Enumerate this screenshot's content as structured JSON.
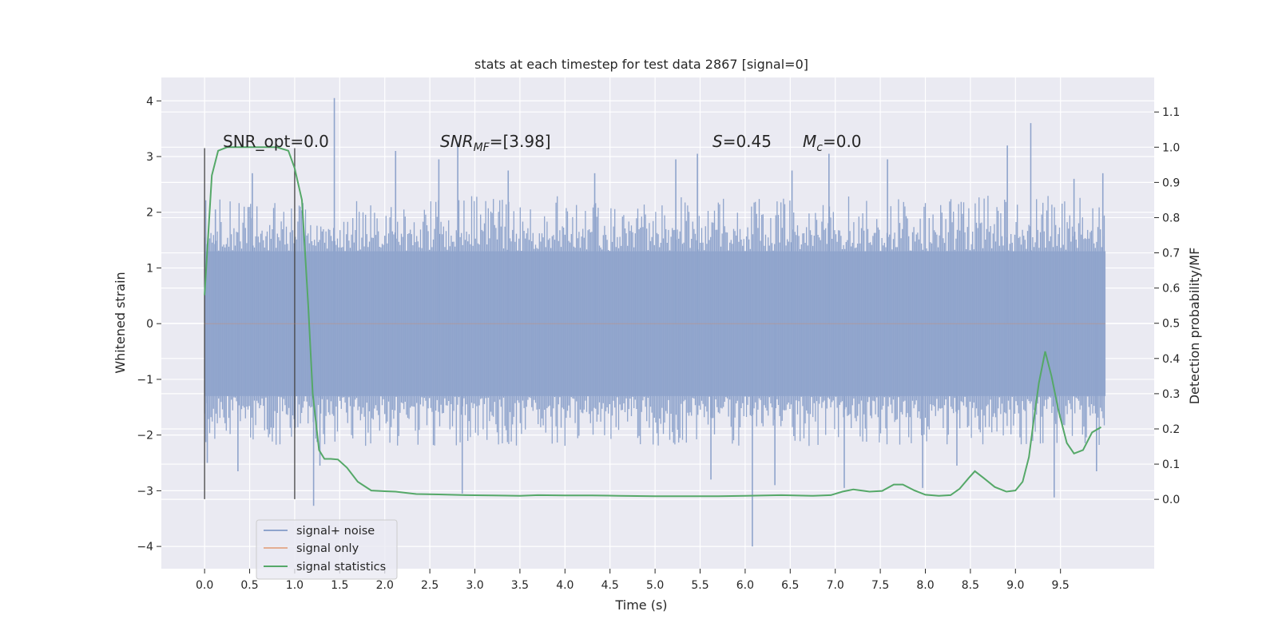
{
  "chart_data": {
    "type": "line",
    "title": "stats at each timestep for test data 2867 [signal=0]",
    "xlabel": "Time (s)",
    "ylabel": "Whitened strain",
    "ylabel_right": "Detection probability/MF",
    "xlim": [
      -0.48,
      10.54
    ],
    "ylim": [
      -4.4,
      4.42
    ],
    "ylim_right": [
      -0.197,
      1.198
    ],
    "x_ticks": [
      "0.0",
      "0.5",
      "1.0",
      "1.5",
      "2.0",
      "2.5",
      "3.0",
      "3.5",
      "4.0",
      "4.5",
      "5.0",
      "5.5",
      "6.0",
      "6.5",
      "7.0",
      "7.5",
      "8.0",
      "8.5",
      "9.0",
      "9.5"
    ],
    "y_ticks": [
      "−4",
      "−3",
      "−2",
      "−1",
      "0",
      "1",
      "2",
      "3",
      "4"
    ],
    "y_ticks_right": [
      "0.0",
      "0.1",
      "0.2",
      "0.3",
      "0.4",
      "0.5",
      "0.6",
      "0.7",
      "0.8",
      "0.9",
      "1.0",
      "1.1"
    ],
    "grid": true,
    "legend_position": "lower-left",
    "annotations": {
      "snr_opt": "SNR_opt=0.0",
      "snr_mf_base": "SNR",
      "snr_mf_sub": "MF",
      "snr_mf_value": "=[3.98]",
      "s_var": "S",
      "s_value": "=0.45",
      "mc_var": "M",
      "mc_sub": "c",
      "mc_value": "=0.0"
    },
    "vertical_markers": {
      "x": [
        0.0,
        1.0
      ],
      "y_range": [
        -3.15,
        3.15
      ]
    },
    "series": [
      {
        "name": "signal+ noise",
        "color": "#8fa4cc",
        "axis": "left",
        "envelope": {
          "x_range": [
            0.0,
            10.0
          ],
          "core_y": [
            -1.3,
            1.3
          ],
          "typical_peak_y": [
            -2.2,
            2.3
          ]
        },
        "spikes": [
          {
            "x": 1.44,
            "y": 4.05
          },
          {
            "x": 1.21,
            "y": -3.27
          },
          {
            "x": 0.12,
            "y": 2.05
          },
          {
            "x": 0.03,
            "y": -2.5
          },
          {
            "x": 0.37,
            "y": -2.65
          },
          {
            "x": 0.53,
            "y": 2.7
          },
          {
            "x": 1.28,
            "y": -2.55
          },
          {
            "x": 2.12,
            "y": 3.1
          },
          {
            "x": 2.6,
            "y": 2.95
          },
          {
            "x": 2.81,
            "y": 3.25
          },
          {
            "x": 2.86,
            "y": -3.05
          },
          {
            "x": 3.37,
            "y": 2.75
          },
          {
            "x": 4.33,
            "y": 2.7
          },
          {
            "x": 5.23,
            "y": 2.95
          },
          {
            "x": 5.47,
            "y": 3.05
          },
          {
            "x": 5.62,
            "y": -2.8
          },
          {
            "x": 6.08,
            "y": -4.0
          },
          {
            "x": 6.33,
            "y": -2.9
          },
          {
            "x": 6.52,
            "y": 2.75
          },
          {
            "x": 6.93,
            "y": 3.05
          },
          {
            "x": 7.1,
            "y": -2.95
          },
          {
            "x": 7.58,
            "y": 2.95
          },
          {
            "x": 7.97,
            "y": -2.95
          },
          {
            "x": 8.35,
            "y": -2.55
          },
          {
            "x": 8.91,
            "y": 3.2
          },
          {
            "x": 9.17,
            "y": 3.6
          },
          {
            "x": 9.43,
            "y": -3.12
          },
          {
            "x": 9.65,
            "y": 2.6
          },
          {
            "x": 9.9,
            "y": -2.65
          },
          {
            "x": 9.97,
            "y": 2.7
          }
        ]
      },
      {
        "name": "signal only",
        "color": "#dd8452",
        "axis": "left",
        "x": [
          0.0,
          10.0
        ],
        "y": [
          0.0,
          0.0
        ]
      },
      {
        "name": "signal statistics",
        "color": "#55a868",
        "axis": "right",
        "x": [
          0.0,
          0.08,
          0.15,
          0.25,
          0.4,
          0.6,
          0.8,
          0.93,
          1.0,
          1.08,
          1.15,
          1.2,
          1.27,
          1.33,
          1.4,
          1.48,
          1.58,
          1.7,
          1.85,
          2.0,
          2.12,
          2.35,
          2.6,
          2.9,
          3.2,
          3.5,
          3.7,
          4.0,
          4.3,
          4.6,
          5.0,
          5.4,
          5.7,
          6.0,
          6.4,
          6.75,
          6.95,
          7.08,
          7.2,
          7.38,
          7.52,
          7.65,
          7.75,
          7.88,
          8.0,
          8.15,
          8.28,
          8.38,
          8.48,
          8.55,
          8.65,
          8.77,
          8.9,
          9.0,
          9.08,
          9.15,
          9.2,
          9.26,
          9.33,
          9.4,
          9.48,
          9.57,
          9.65,
          9.75,
          9.85,
          9.95
        ],
        "y": [
          0.58,
          0.92,
          0.99,
          1.0,
          1.0,
          1.0,
          1.0,
          0.99,
          0.94,
          0.85,
          0.55,
          0.3,
          0.14,
          0.115,
          0.115,
          0.113,
          0.09,
          0.05,
          0.025,
          0.023,
          0.022,
          0.015,
          0.014,
          0.012,
          0.011,
          0.01,
          0.012,
          0.011,
          0.011,
          0.01,
          0.009,
          0.009,
          0.009,
          0.01,
          0.012,
          0.01,
          0.012,
          0.022,
          0.028,
          0.022,
          0.024,
          0.042,
          0.042,
          0.025,
          0.013,
          0.01,
          0.012,
          0.03,
          0.06,
          0.08,
          0.06,
          0.035,
          0.022,
          0.025,
          0.05,
          0.12,
          0.22,
          0.33,
          0.42,
          0.35,
          0.25,
          0.16,
          0.13,
          0.14,
          0.19,
          0.205
        ]
      }
    ]
  }
}
